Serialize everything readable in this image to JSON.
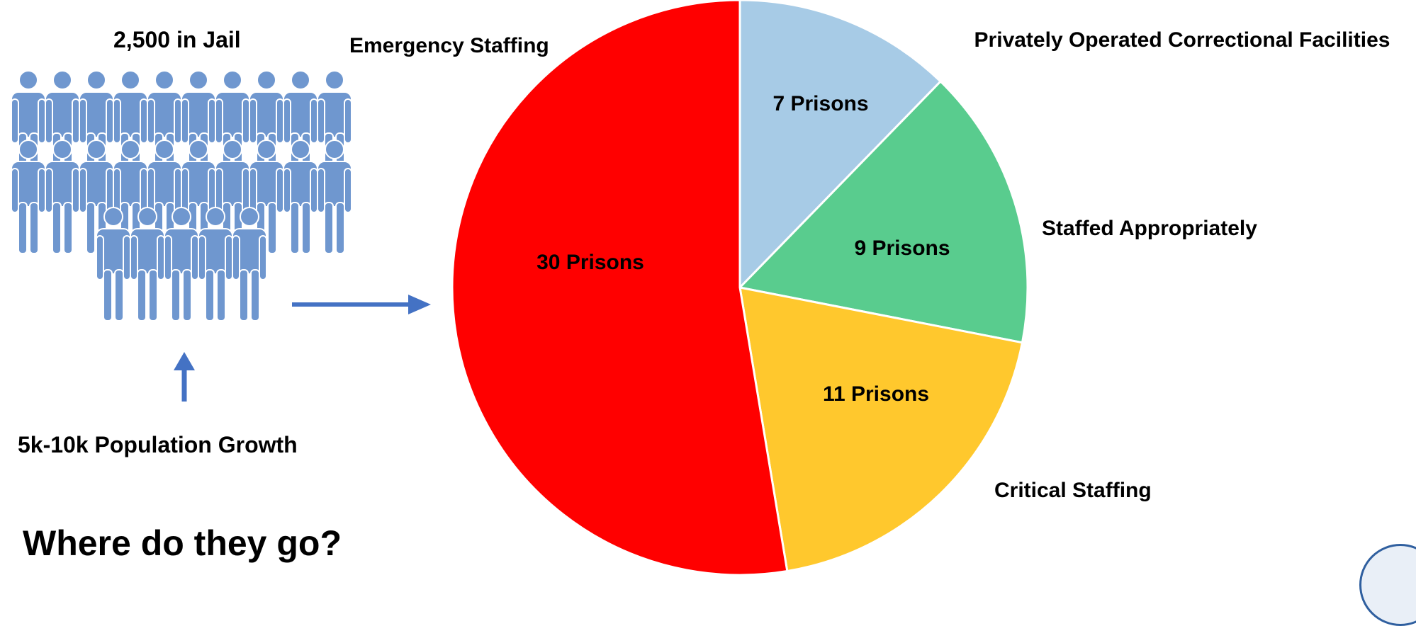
{
  "left_panel": {
    "jail_label": "2,500 in Jail",
    "growth_label": "5k-10k Population Growth",
    "question": "Where do they go?",
    "people_icon": "person-icon",
    "people_color": "#6f97cf",
    "arrow_color": "#4472c4"
  },
  "chart_data": {
    "type": "pie",
    "title": "",
    "unit": "Prisons",
    "slices": [
      {
        "name": "Privately Operated Correctional Facilities",
        "value": 7,
        "label": "7 Prisons",
        "color": "#a7cbe6"
      },
      {
        "name": "Staffed Appropriately",
        "value": 9,
        "label": "9 Prisons",
        "color": "#59cc8e"
      },
      {
        "name": "Critical Staffing",
        "value": 11,
        "label": "11 Prisons",
        "color": "#ffc82d"
      },
      {
        "name": "Emergency Staffing",
        "value": 30,
        "label": "30 Prisons",
        "color": "#ff0000"
      }
    ],
    "start_angle": "12 o'clock",
    "direction": "clockwise",
    "legend": "category labels placed outside the pie next to each slice"
  }
}
